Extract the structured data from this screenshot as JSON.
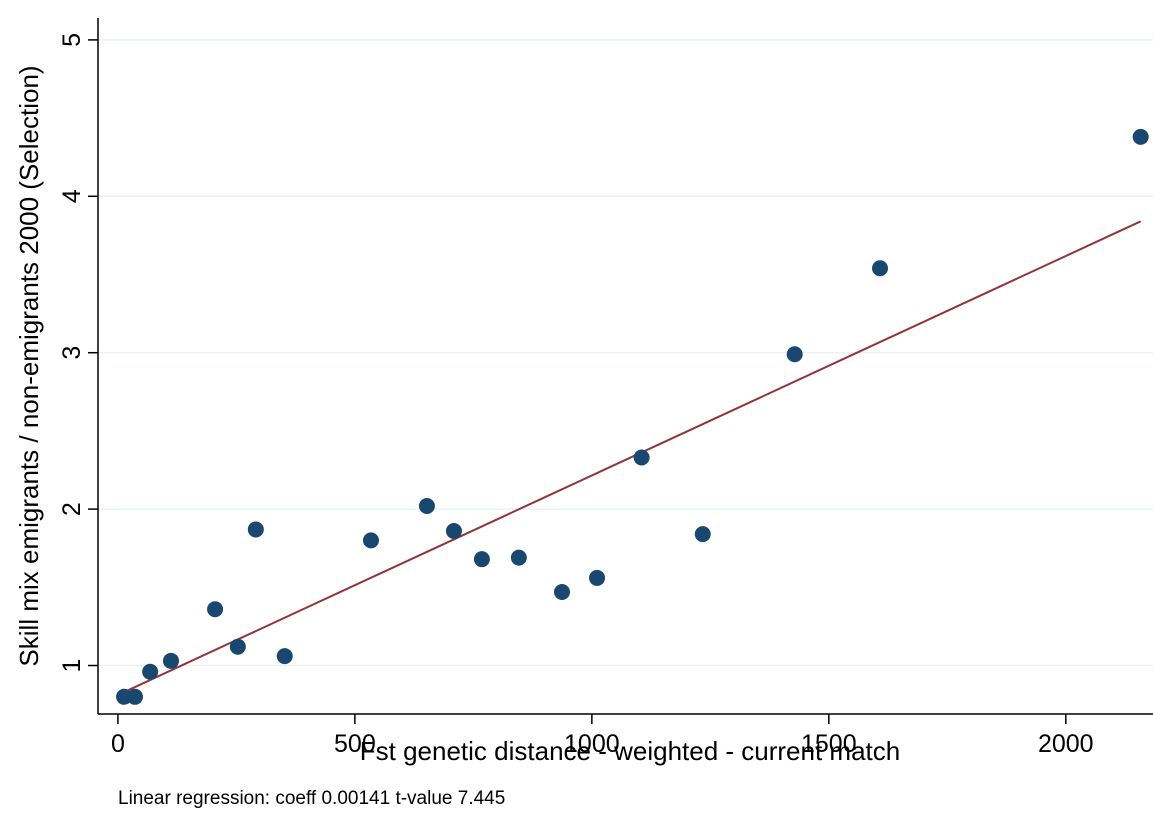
{
  "chart_data": {
    "type": "scatter",
    "x_label": "Fst genetic distance - weighted - current match",
    "y_label": "Skill mix emigrants / non-emigrants 2000 (Selection)",
    "note": "Linear regression: coeff 0.00141 t-value 7.445",
    "x": [
      13,
      36,
      68,
      112,
      205,
      253,
      291,
      352,
      534,
      652,
      709,
      768,
      846,
      937,
      1011,
      1105,
      1234,
      1428,
      1608,
      2158
    ],
    "values": [
      0.8,
      0.8,
      0.96,
      1.03,
      1.36,
      1.12,
      1.87,
      1.06,
      1.8,
      2.02,
      1.86,
      1.68,
      1.69,
      1.47,
      1.56,
      2.33,
      1.84,
      2.99,
      3.54,
      4.38
    ],
    "color": "#1a476f",
    "fit": {
      "x": [
        13,
        2158
      ],
      "y": [
        0.83,
        3.84
      ],
      "color": "#90353b"
    },
    "xlim": [
      -42,
      2184
    ],
    "ylim": [
      0.69,
      5.14
    ],
    "xticks": [
      0,
      500,
      1000,
      1500,
      2000
    ],
    "yticks": [
      1,
      2,
      3,
      4,
      5
    ],
    "grid": true
  }
}
